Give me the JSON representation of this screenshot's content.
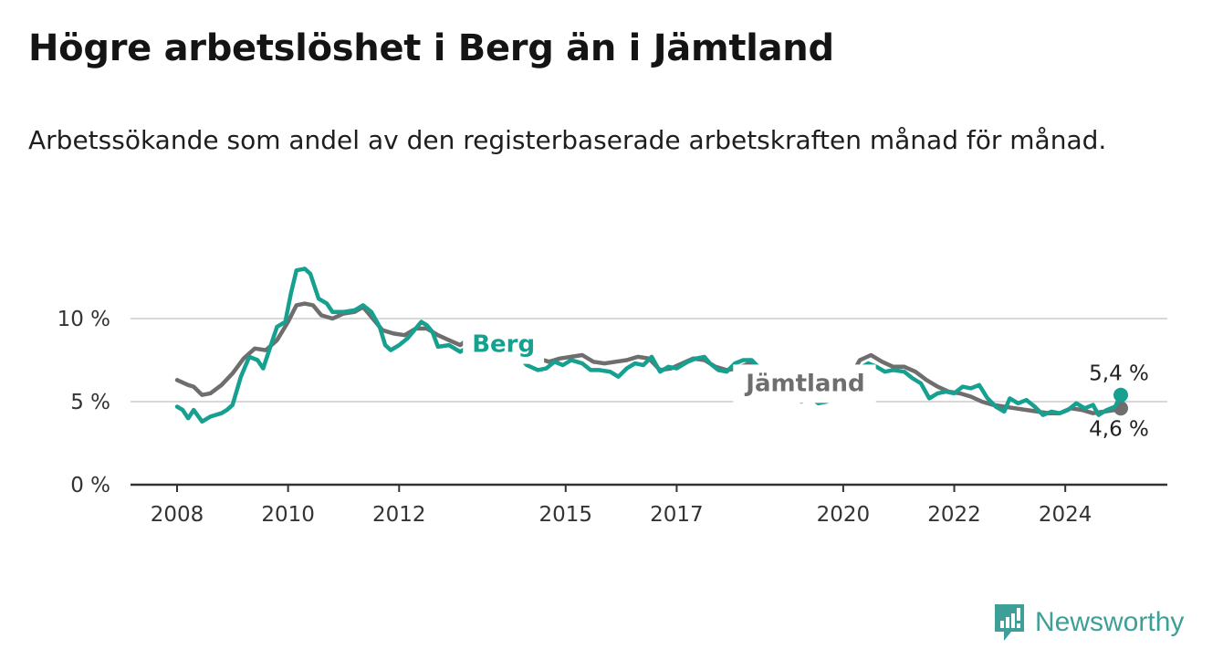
{
  "header": {
    "title": "Högre arbetslöshet i Berg än i Jämtland",
    "subtitle": "Arbetssökande som andel av den registerbaserade arbetskraften månad för månad."
  },
  "brand": {
    "name": "Newsworthy",
    "icon": "newsworthy-logo-icon",
    "color": "#3e9e98"
  },
  "chart_data": {
    "type": "line",
    "y_ticks": [
      {
        "value": 0,
        "label": "0 %"
      },
      {
        "value": 5,
        "label": "5 %"
      },
      {
        "value": 10,
        "label": "10 %"
      }
    ],
    "x_ticks": [
      {
        "value": 2008,
        "label": "2008"
      },
      {
        "value": 2010,
        "label": "2010"
      },
      {
        "value": 2012,
        "label": "2012"
      },
      {
        "value": 2015,
        "label": "2015"
      },
      {
        "value": 2017,
        "label": "2017"
      },
      {
        "value": 2020,
        "label": "2020"
      },
      {
        "value": 2022,
        "label": "2022"
      },
      {
        "value": 2024,
        "label": "2024"
      }
    ],
    "xlim": [
      2007.2,
      2025.8
    ],
    "ylim": [
      0,
      13.5
    ],
    "grid": true,
    "series": [
      {
        "name": "Jämtland",
        "color": "#6e6e6e",
        "end_label": "4,6 %",
        "points": [
          [
            2008.0,
            6.3
          ],
          [
            2008.2,
            6.0
          ],
          [
            2008.3,
            5.9
          ],
          [
            2008.45,
            5.4
          ],
          [
            2008.6,
            5.5
          ],
          [
            2008.8,
            6.0
          ],
          [
            2009.0,
            6.7
          ],
          [
            2009.2,
            7.6
          ],
          [
            2009.4,
            8.2
          ],
          [
            2009.6,
            8.1
          ],
          [
            2009.8,
            8.7
          ],
          [
            2010.0,
            9.8
          ],
          [
            2010.15,
            10.8
          ],
          [
            2010.3,
            10.9
          ],
          [
            2010.45,
            10.8
          ],
          [
            2010.6,
            10.2
          ],
          [
            2010.8,
            10.0
          ],
          [
            2011.0,
            10.3
          ],
          [
            2011.2,
            10.4
          ],
          [
            2011.35,
            10.7
          ],
          [
            2011.5,
            10.1
          ],
          [
            2011.7,
            9.3
          ],
          [
            2011.9,
            9.1
          ],
          [
            2012.1,
            9.0
          ],
          [
            2012.3,
            9.4
          ],
          [
            2012.5,
            9.4
          ],
          [
            2012.7,
            9.0
          ],
          [
            2012.9,
            8.7
          ],
          [
            2013.1,
            8.4
          ],
          [
            2013.3,
            8.9
          ],
          [
            2013.5,
            8.8
          ],
          [
            2013.7,
            8.5
          ],
          [
            2013.9,
            8.3
          ],
          [
            2014.1,
            8.2
          ],
          [
            2014.3,
            7.8
          ],
          [
            2014.5,
            7.6
          ],
          [
            2014.7,
            7.4
          ],
          [
            2014.9,
            7.6
          ],
          [
            2015.1,
            7.7
          ],
          [
            2015.3,
            7.8
          ],
          [
            2015.5,
            7.4
          ],
          [
            2015.7,
            7.3
          ],
          [
            2015.9,
            7.4
          ],
          [
            2016.1,
            7.5
          ],
          [
            2016.3,
            7.7
          ],
          [
            2016.5,
            7.6
          ],
          [
            2016.7,
            6.9
          ],
          [
            2016.9,
            7.0
          ],
          [
            2017.1,
            7.3
          ],
          [
            2017.3,
            7.6
          ],
          [
            2017.5,
            7.5
          ],
          [
            2017.7,
            7.1
          ],
          [
            2017.9,
            6.9
          ],
          [
            2018.1,
            7.0
          ],
          [
            2018.3,
            7.3
          ],
          [
            2018.5,
            7.0
          ],
          [
            2018.7,
            6.6
          ],
          [
            2018.9,
            6.2
          ],
          [
            2019.1,
            6.0
          ],
          [
            2019.3,
            5.9
          ],
          [
            2019.5,
            5.7
          ],
          [
            2019.7,
            5.6
          ],
          [
            2019.9,
            5.7
          ],
          [
            2020.1,
            6.3
          ],
          [
            2020.3,
            7.5
          ],
          [
            2020.5,
            7.8
          ],
          [
            2020.7,
            7.4
          ],
          [
            2020.9,
            7.1
          ],
          [
            2021.1,
            7.1
          ],
          [
            2021.3,
            6.8
          ],
          [
            2021.5,
            6.3
          ],
          [
            2021.7,
            5.9
          ],
          [
            2021.9,
            5.6
          ],
          [
            2022.1,
            5.5
          ],
          [
            2022.3,
            5.3
          ],
          [
            2022.5,
            5.0
          ],
          [
            2022.7,
            4.8
          ],
          [
            2022.9,
            4.7
          ],
          [
            2023.1,
            4.6
          ],
          [
            2023.3,
            4.5
          ],
          [
            2023.5,
            4.4
          ],
          [
            2023.7,
            4.3
          ],
          [
            2023.9,
            4.3
          ],
          [
            2024.1,
            4.6
          ],
          [
            2024.3,
            4.5
          ],
          [
            2024.5,
            4.3
          ],
          [
            2024.7,
            4.4
          ],
          [
            2024.9,
            4.5
          ],
          [
            2025.0,
            4.6
          ]
        ]
      },
      {
        "name": "Berg",
        "color": "#16a090",
        "end_label": "5,4 %",
        "points": [
          [
            2008.0,
            4.7
          ],
          [
            2008.1,
            4.5
          ],
          [
            2008.2,
            4.0
          ],
          [
            2008.3,
            4.5
          ],
          [
            2008.45,
            3.8
          ],
          [
            2008.6,
            4.1
          ],
          [
            2008.8,
            4.3
          ],
          [
            2008.9,
            4.5
          ],
          [
            2009.0,
            4.8
          ],
          [
            2009.15,
            6.5
          ],
          [
            2009.3,
            7.7
          ],
          [
            2009.45,
            7.5
          ],
          [
            2009.55,
            7.0
          ],
          [
            2009.65,
            8.0
          ],
          [
            2009.8,
            9.5
          ],
          [
            2009.95,
            9.8
          ],
          [
            2010.05,
            11.5
          ],
          [
            2010.15,
            12.9
          ],
          [
            2010.3,
            13.0
          ],
          [
            2010.4,
            12.7
          ],
          [
            2010.55,
            11.2
          ],
          [
            2010.7,
            10.9
          ],
          [
            2010.8,
            10.4
          ],
          [
            2011.0,
            10.4
          ],
          [
            2011.2,
            10.5
          ],
          [
            2011.35,
            10.8
          ],
          [
            2011.5,
            10.4
          ],
          [
            2011.65,
            9.5
          ],
          [
            2011.75,
            8.4
          ],
          [
            2011.85,
            8.1
          ],
          [
            2012.0,
            8.4
          ],
          [
            2012.15,
            8.8
          ],
          [
            2012.3,
            9.4
          ],
          [
            2012.4,
            9.8
          ],
          [
            2012.5,
            9.6
          ],
          [
            2012.6,
            9.2
          ],
          [
            2012.7,
            8.3
          ],
          [
            2012.9,
            8.4
          ],
          [
            2013.1,
            8.0
          ],
          [
            2013.3,
            8.4
          ],
          [
            2013.5,
            8.2
          ],
          [
            2013.7,
            8.0
          ],
          [
            2013.9,
            8.1
          ],
          [
            2014.1,
            7.9
          ],
          [
            2014.3,
            7.2
          ],
          [
            2014.5,
            6.9
          ],
          [
            2014.65,
            7.0
          ],
          [
            2014.8,
            7.4
          ],
          [
            2014.95,
            7.2
          ],
          [
            2015.1,
            7.5
          ],
          [
            2015.3,
            7.3
          ],
          [
            2015.45,
            6.9
          ],
          [
            2015.6,
            6.9
          ],
          [
            2015.8,
            6.8
          ],
          [
            2015.95,
            6.5
          ],
          [
            2016.1,
            7.0
          ],
          [
            2016.25,
            7.3
          ],
          [
            2016.4,
            7.2
          ],
          [
            2016.55,
            7.7
          ],
          [
            2016.7,
            6.8
          ],
          [
            2016.85,
            7.1
          ],
          [
            2017.0,
            7.0
          ],
          [
            2017.2,
            7.4
          ],
          [
            2017.35,
            7.6
          ],
          [
            2017.5,
            7.7
          ],
          [
            2017.6,
            7.3
          ],
          [
            2017.75,
            6.9
          ],
          [
            2017.9,
            6.8
          ],
          [
            2018.05,
            7.3
          ],
          [
            2018.2,
            7.5
          ],
          [
            2018.35,
            7.5
          ],
          [
            2018.5,
            7.0
          ],
          [
            2018.65,
            6.7
          ],
          [
            2018.8,
            6.3
          ],
          [
            2018.95,
            5.7
          ],
          [
            2019.1,
            5.5
          ],
          [
            2019.25,
            5.0
          ],
          [
            2019.4,
            5.3
          ],
          [
            2019.55,
            4.9
          ],
          [
            2019.7,
            5.0
          ],
          [
            2019.85,
            5.2
          ],
          [
            2020.0,
            5.6
          ],
          [
            2020.15,
            6.4
          ],
          [
            2020.3,
            7.0
          ],
          [
            2020.45,
            7.3
          ],
          [
            2020.6,
            7.1
          ],
          [
            2020.75,
            6.8
          ],
          [
            2020.9,
            6.9
          ],
          [
            2021.1,
            6.8
          ],
          [
            2021.25,
            6.4
          ],
          [
            2021.4,
            6.1
          ],
          [
            2021.55,
            5.2
          ],
          [
            2021.7,
            5.5
          ],
          [
            2021.85,
            5.6
          ],
          [
            2022.0,
            5.5
          ],
          [
            2022.15,
            5.9
          ],
          [
            2022.3,
            5.8
          ],
          [
            2022.45,
            6.0
          ],
          [
            2022.6,
            5.2
          ],
          [
            2022.75,
            4.7
          ],
          [
            2022.9,
            4.4
          ],
          [
            2023.0,
            5.2
          ],
          [
            2023.15,
            4.9
          ],
          [
            2023.3,
            5.1
          ],
          [
            2023.45,
            4.7
          ],
          [
            2023.6,
            4.2
          ],
          [
            2023.75,
            4.4
          ],
          [
            2023.9,
            4.3
          ],
          [
            2024.05,
            4.5
          ],
          [
            2024.2,
            4.9
          ],
          [
            2024.35,
            4.6
          ],
          [
            2024.5,
            4.8
          ],
          [
            2024.6,
            4.2
          ],
          [
            2024.75,
            4.5
          ],
          [
            2024.9,
            4.7
          ],
          [
            2025.0,
            5.4
          ]
        ]
      }
    ]
  }
}
